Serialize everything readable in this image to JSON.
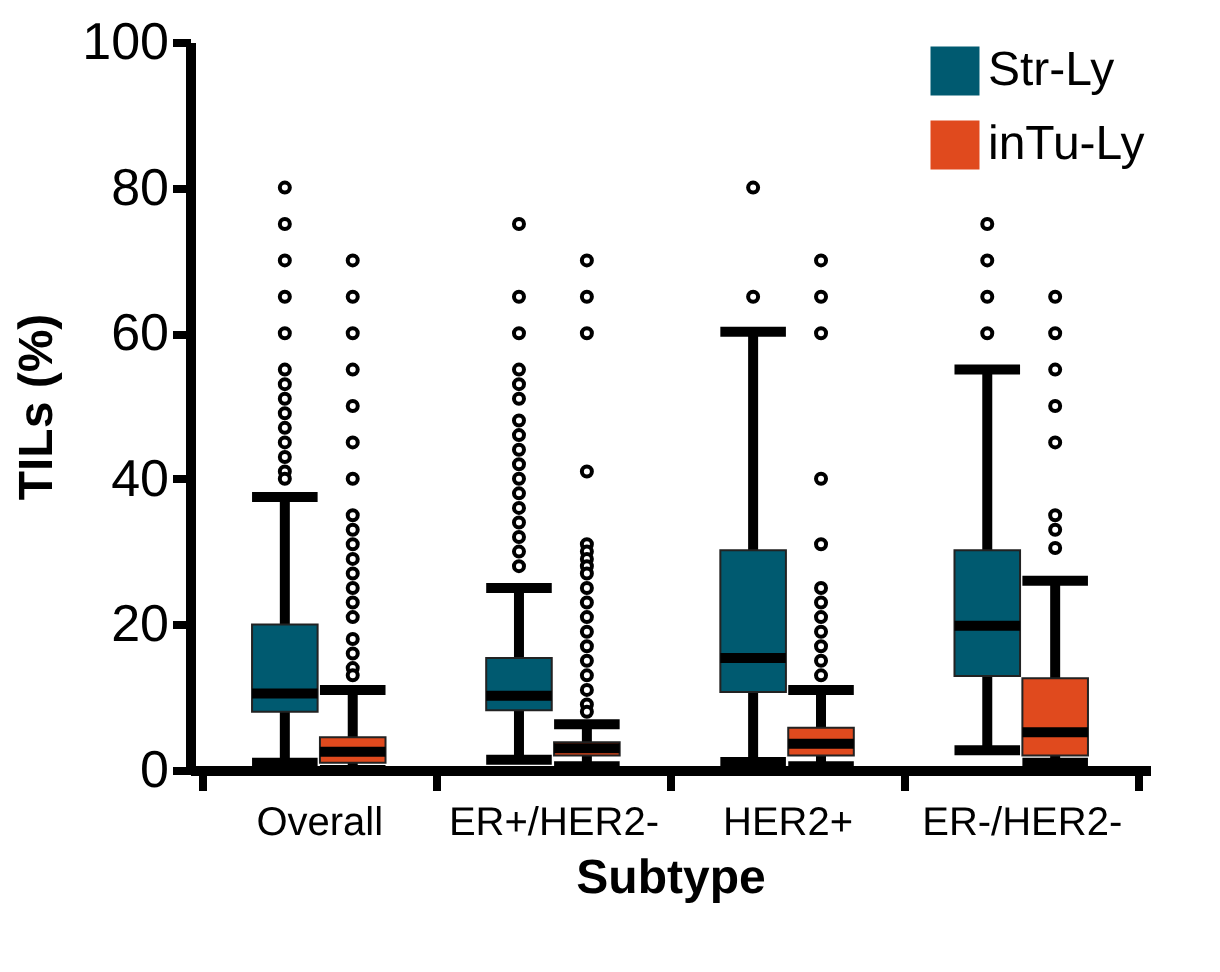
{
  "chart_data": {
    "type": "box",
    "xlabel": "Subtype",
    "ylabel": "TILs (%)",
    "categories": [
      "Overall",
      "ER+/HER2-",
      "HER2+",
      "ER-/HER2-"
    ],
    "ylim": [
      0,
      100
    ],
    "yticks": [
      0,
      20,
      40,
      60,
      80,
      100
    ],
    "grid": false,
    "legend": "top right",
    "series": [
      {
        "name": "Str-Ly",
        "color": "#005a70",
        "boxes": [
          {
            "low": 1,
            "q1": 8,
            "median": 10.5,
            "q3": 20,
            "high": 37.5,
            "outliers": [
              80,
              75,
              70,
              65,
              60,
              55,
              53,
              51,
              49,
              47,
              45,
              43,
              41,
              40
            ]
          },
          {
            "low": 1.4,
            "q1": 8.2,
            "median": 10.2,
            "q3": 15.4,
            "high": 25,
            "outliers": [
              75,
              65,
              60,
              55,
              53,
              51,
              48,
              46,
              44,
              42,
              40,
              38,
              36,
              34,
              32,
              30,
              28
            ]
          },
          {
            "low": 1.1,
            "q1": 10.7,
            "median": 15.4,
            "q3": 30.2,
            "high": 60.2,
            "outliers": [
              80,
              65
            ]
          },
          {
            "low": 2.7,
            "q1": 12.9,
            "median": 19.8,
            "q3": 30.2,
            "high": 55,
            "outliers": [
              75,
              70,
              65,
              60
            ]
          }
        ]
      },
      {
        "name": "inTu-Ly",
        "color": "#e04a1e",
        "boxes": [
          {
            "low": 0,
            "q1": 1,
            "median": 2.5,
            "q3": 4.5,
            "high": 11,
            "outliers": [
              70,
              65,
              60,
              55,
              50,
              45,
              40,
              35,
              33,
              31,
              29,
              27,
              25,
              23,
              21,
              18,
              16,
              14,
              13
            ]
          },
          {
            "low": 0.5,
            "q1": 2,
            "median": 3,
            "q3": 3.8,
            "high": 6.3,
            "outliers": [
              70,
              65,
              60,
              41,
              31,
              30,
              29,
              28,
              27,
              25,
              23,
              21,
              19,
              17,
              15,
              13,
              11,
              9,
              8
            ]
          },
          {
            "low": 0.5,
            "q1": 2,
            "median": 3.6,
            "q3": 5.8,
            "high": 11,
            "outliers": [
              70,
              65,
              60,
              40,
              31,
              25,
              23,
              21,
              19,
              17,
              15,
              13
            ]
          },
          {
            "low": 1,
            "q1": 2,
            "median": 5.2,
            "q3": 12.6,
            "high": 26,
            "outliers": [
              65,
              60,
              55,
              50,
              45,
              35,
              33,
              30.5
            ]
          }
        ]
      }
    ]
  }
}
